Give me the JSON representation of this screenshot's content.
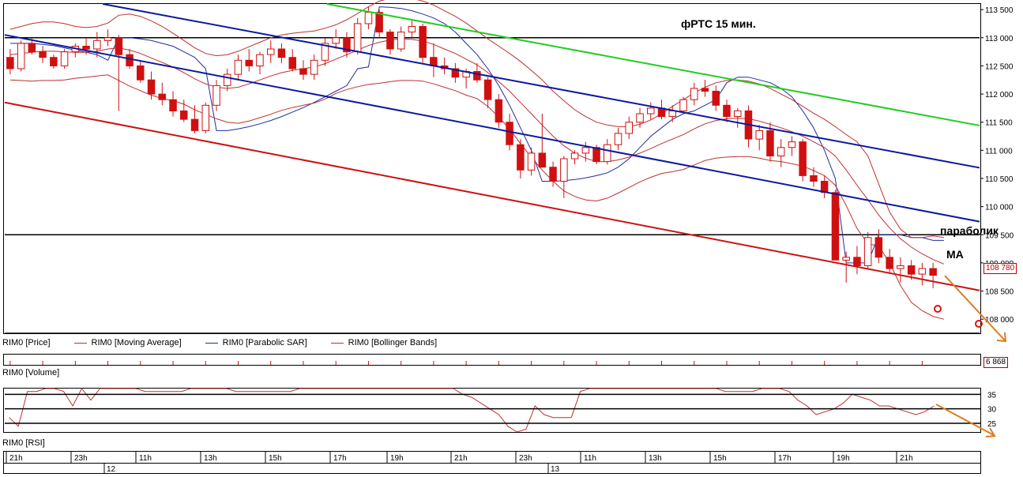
{
  "chart_data": {
    "type": "candlestick",
    "instrument": "RIM0",
    "title": "фРТС   15 мин.",
    "price_axis": {
      "min": 107750,
      "max": 113600,
      "ticks": [
        "113 500",
        "113 000",
        "112 500",
        "112 000",
        "111 500",
        "111 000",
        "110 500",
        "110 000",
        "109 500",
        "109 000",
        "108 500",
        "108 000"
      ],
      "tick_values": [
        113500,
        113000,
        112500,
        112000,
        111500,
        111000,
        110500,
        110000,
        109500,
        109000,
        108500,
        108000
      ]
    },
    "last_price_label": "108 780",
    "last_price": 108780,
    "volume_label": "6 868",
    "rsi_axis": {
      "ticks": [
        "35",
        "30",
        "25"
      ],
      "tick_values": [
        35,
        30,
        25
      ],
      "min": 22,
      "max": 37
    },
    "time_axis": {
      "hour_labels": [
        "21h",
        "23h",
        "11h",
        "13h",
        "15h",
        "17h",
        "19h",
        "21h",
        "23h",
        "11h",
        "13h",
        "15h",
        "17h",
        "19h",
        "21h"
      ],
      "day_labels": [
        "12",
        "13"
      ]
    },
    "legend": [
      {
        "label": "RIM0 [Price]",
        "color": "#000000"
      },
      {
        "label": "RIM0 [Moving Average]",
        "color": "#c03030"
      },
      {
        "label": "RIM0 [Parabolic SAR]",
        "color": "#1c2ea0"
      },
      {
        "label": "RIM0 [Bollinger Bands]",
        "color": "#c03030"
      }
    ],
    "pane_labels": {
      "volume": "RIM0 [Volume]",
      "rsi": "RIM0 [RSI]"
    },
    "annotations": {
      "parabolic": "параболик",
      "ma": "МА"
    },
    "horizontal_levels": [
      113000,
      109500,
      107750
    ],
    "trendlines": [
      {
        "name": "green",
        "color": "#22cc22",
        "p1": [
          0.345,
          113600
        ],
        "p2": [
          0.96,
          111700
        ]
      },
      {
        "name": "blue-upper",
        "color": "#0a1a9c",
        "p1": [
          0.105,
          113600
        ],
        "p2": [
          0.96,
          110950
        ]
      },
      {
        "name": "blue-lower",
        "color": "#0a1a9c",
        "p1": [
          0.0,
          113050
        ],
        "p2": [
          0.96,
          110000
        ]
      },
      {
        "name": "red",
        "color": "#cc1111",
        "p1": [
          0.0,
          111850
        ],
        "p2": [
          0.96,
          108780
        ]
      }
    ],
    "candles": [
      [
        112650,
        112800,
        112350,
        112450
      ],
      [
        112450,
        112950,
        112400,
        112900
      ],
      [
        112900,
        113000,
        112700,
        112750
      ],
      [
        112750,
        112850,
        112550,
        112650
      ],
      [
        112650,
        112700,
        112450,
        112500
      ],
      [
        112500,
        112800,
        112450,
        112750
      ],
      [
        112750,
        112900,
        112650,
        112850
      ],
      [
        112850,
        113000,
        112700,
        112800
      ],
      [
        112800,
        113100,
        112650,
        112950
      ],
      [
        112950,
        113150,
        112850,
        113000
      ],
      [
        113000,
        113050,
        111700,
        112700
      ],
      [
        112700,
        112800,
        112450,
        112500
      ],
      [
        112500,
        112600,
        112200,
        112250
      ],
      [
        112250,
        112400,
        111900,
        112000
      ],
      [
        112000,
        112200,
        111800,
        111900
      ],
      [
        111900,
        112050,
        111600,
        111700
      ],
      [
        111700,
        111900,
        111500,
        111550
      ],
      [
        111550,
        111800,
        111300,
        111350
      ],
      [
        111350,
        111850,
        111300,
        111800
      ],
      [
        111800,
        112250,
        111700,
        112150
      ],
      [
        112150,
        112450,
        112050,
        112350
      ],
      [
        112350,
        112700,
        112250,
        112600
      ],
      [
        112600,
        112800,
        112400,
        112500
      ],
      [
        112500,
        112750,
        112350,
        112700
      ],
      [
        112700,
        112950,
        112550,
        112800
      ],
      [
        112800,
        112900,
        112550,
        112650
      ],
      [
        112650,
        112800,
        112400,
        112450
      ],
      [
        112450,
        112600,
        112250,
        112350
      ],
      [
        112350,
        112700,
        112250,
        112600
      ],
      [
        112600,
        113000,
        112500,
        112900
      ],
      [
        112900,
        113150,
        112800,
        113000
      ],
      [
        113000,
        113100,
        112650,
        112750
      ],
      [
        112750,
        113350,
        112700,
        113250
      ],
      [
        113250,
        113550,
        113150,
        113450
      ],
      [
        113450,
        113500,
        113000,
        113100
      ],
      [
        113100,
        113150,
        112700,
        112800
      ],
      [
        112800,
        113200,
        112750,
        113100
      ],
      [
        113100,
        113300,
        113000,
        113200
      ],
      [
        113200,
        113250,
        112550,
        112650
      ],
      [
        112650,
        112900,
        112300,
        112500
      ],
      [
        112500,
        112650,
        112350,
        112450
      ],
      [
        112450,
        112550,
        112200,
        112300
      ],
      [
        112300,
        112450,
        112100,
        112400
      ],
      [
        112400,
        112550,
        112200,
        112250
      ],
      [
        112250,
        112300,
        111750,
        111900
      ],
      [
        111900,
        112000,
        111400,
        111500
      ],
      [
        111500,
        111650,
        111000,
        111100
      ],
      [
        111100,
        111200,
        110500,
        110650
      ],
      [
        110650,
        111050,
        110550,
        110950
      ],
      [
        110950,
        111650,
        110750,
        110700
      ],
      [
        110700,
        110800,
        110350,
        110450
      ],
      [
        110450,
        110900,
        110150,
        110850
      ],
      [
        110850,
        111000,
        110750,
        110950
      ],
      [
        110950,
        111150,
        110800,
        111050
      ],
      [
        111050,
        111100,
        110750,
        110800
      ],
      [
        110800,
        111200,
        110750,
        111100
      ],
      [
        111100,
        111400,
        111000,
        111300
      ],
      [
        111300,
        111600,
        111200,
        111500
      ],
      [
        111500,
        111750,
        111400,
        111650
      ],
      [
        111650,
        111850,
        111550,
        111750
      ],
      [
        111750,
        111900,
        111550,
        111600
      ],
      [
        111600,
        111800,
        111500,
        111700
      ],
      [
        111700,
        111950,
        111650,
        111900
      ],
      [
        111900,
        112200,
        111800,
        112100
      ],
      [
        112100,
        112250,
        111950,
        112050
      ],
      [
        112050,
        112150,
        111700,
        111800
      ],
      [
        111800,
        111900,
        111500,
        111600
      ],
      [
        111600,
        111750,
        111400,
        111700
      ],
      [
        111700,
        111800,
        111050,
        111200
      ],
      [
        111200,
        111450,
        111000,
        111350
      ],
      [
        111350,
        111500,
        110800,
        110900
      ],
      [
        110900,
        111200,
        110700,
        111050
      ],
      [
        111050,
        111250,
        110900,
        111150
      ],
      [
        111150,
        111200,
        110450,
        110550
      ],
      [
        110550,
        110700,
        110350,
        110450
      ],
      [
        110450,
        110550,
        110150,
        110250
      ],
      [
        110250,
        110300,
        109100,
        109050
      ],
      [
        109050,
        109200,
        108650,
        109100
      ],
      [
        109100,
        109300,
        108800,
        108950
      ],
      [
        108950,
        109550,
        108900,
        109450
      ],
      [
        109450,
        109600,
        109000,
        109100
      ],
      [
        109100,
        109250,
        108800,
        108900
      ],
      [
        108900,
        109100,
        108650,
        108950
      ],
      [
        108950,
        109050,
        108700,
        108800
      ],
      [
        108800,
        109000,
        108600,
        108900
      ],
      [
        108900,
        109000,
        108550,
        108780
      ]
    ],
    "series": [
      {
        "name": "RIM0 [Parabolic SAR]",
        "values": [
          112900,
          112900,
          112900,
          112880,
          112860,
          112820,
          112780,
          112740,
          112700,
          112600,
          113000,
          113000,
          112980,
          112950,
          112900,
          112850,
          112750,
          112650,
          112450,
          111350,
          111350,
          111380,
          111420,
          111470,
          111530,
          111600,
          111680,
          111760,
          111850,
          111950,
          112050,
          112150,
          112450,
          112480,
          113550,
          113540,
          113520,
          113480,
          113420,
          113350,
          113250,
          113100,
          112900,
          112700,
          112450,
          112150,
          111800,
          111400,
          111000,
          110450,
          110450,
          110460,
          110480,
          110510,
          110550,
          110600,
          110700,
          110850,
          111050,
          111250,
          111400,
          111550,
          111650,
          111700,
          111800,
          111900,
          112200,
          112300,
          112300,
          112250,
          112200,
          112100,
          111950,
          111700,
          111400,
          111000,
          110500,
          109000,
          109000,
          109000,
          109500,
          109500,
          109500,
          109450,
          109450,
          109400,
          109400
        ]
      },
      {
        "name": "RIM0 [Moving Average]",
        "values": [
          112700,
          112720,
          112740,
          112760,
          112760,
          112750,
          112740,
          112740,
          112760,
          112800,
          112820,
          112780,
          112720,
          112640,
          112560,
          112480,
          112380,
          112270,
          112180,
          112120,
          112100,
          112120,
          112180,
          112250,
          112320,
          112380,
          112420,
          112450,
          112480,
          112540,
          112620,
          112700,
          112780,
          112860,
          112920,
          112960,
          112980,
          112970,
          112940,
          112880,
          112800,
          112720,
          112620,
          112520,
          112380,
          112220,
          112050,
          111850,
          111650,
          111450,
          111250,
          111080,
          110950,
          110860,
          110800,
          110800,
          110830,
          110880,
          110950,
          111030,
          111120,
          111200,
          111280,
          111380,
          111470,
          111530,
          111560,
          111570,
          111560,
          111520,
          111460,
          111400,
          111330,
          111250,
          111150,
          111050,
          110900,
          110650,
          110380,
          110120,
          109850,
          109620,
          109430,
          109280,
          109160,
          109060,
          108980
        ]
      },
      {
        "name": "RIM0 [Bollinger Bands] upper",
        "values": [
          113150,
          113200,
          113250,
          113280,
          113280,
          113250,
          113200,
          113180,
          113200,
          113260,
          113400,
          113420,
          113380,
          113300,
          113200,
          113080,
          112950,
          112820,
          112720,
          112680,
          112700,
          112760,
          112840,
          112920,
          113000,
          113050,
          113080,
          113100,
          113120,
          113170,
          113230,
          113320,
          113430,
          113550,
          113650,
          113700,
          113720,
          113700,
          113650,
          113580,
          113480,
          113380,
          113260,
          113120,
          112980,
          112850,
          112720,
          112580,
          112420,
          112250,
          112050,
          111880,
          111720,
          111600,
          111500,
          111450,
          111420,
          111420,
          111460,
          111540,
          111650,
          111780,
          111900,
          112020,
          112120,
          112200,
          112240,
          112250,
          112230,
          112180,
          112100,
          112000,
          111900,
          111780,
          111660,
          111550,
          111420,
          111280,
          111150,
          110900,
          110400,
          109900,
          109600,
          109450,
          109450,
          109480,
          109450
        ]
      },
      {
        "name": "RIM0 [Bollinger Bands] lower",
        "values": [
          112250,
          112240,
          112230,
          112240,
          112240,
          112250,
          112280,
          112300,
          112320,
          112340,
          112240,
          112140,
          112060,
          111980,
          111920,
          111880,
          111820,
          111720,
          111640,
          111560,
          111500,
          111480,
          111520,
          111580,
          111640,
          111710,
          111760,
          111800,
          111840,
          111910,
          112010,
          112080,
          112130,
          112170,
          112190,
          112220,
          112240,
          112240,
          112230,
          112180,
          112120,
          112060,
          111980,
          111920,
          111780,
          111590,
          111380,
          111120,
          110880,
          110650,
          110450,
          110280,
          110180,
          110120,
          110100,
          110150,
          110240,
          110340,
          110440,
          110520,
          110590,
          110620,
          110660,
          110740,
          110820,
          110860,
          110880,
          110890,
          110890,
          110860,
          110820,
          110800,
          110760,
          110720,
          110640,
          110550,
          110380,
          110020,
          109610,
          109340,
          109300,
          109000,
          108600,
          108300,
          108150,
          108050,
          108000
        ]
      },
      {
        "name": "RSI",
        "values": [
          27,
          24,
          36,
          36,
          37,
          37,
          36,
          31,
          37,
          33,
          38,
          38,
          38,
          37,
          37,
          36,
          36,
          36,
          36,
          36,
          37,
          37,
          37,
          37,
          37,
          36,
          36,
          36,
          36,
          36,
          36,
          36,
          37,
          37,
          37,
          37,
          37,
          37,
          37,
          37,
          37,
          37,
          37,
          37,
          37,
          37,
          37,
          37,
          37,
          37,
          35,
          34,
          32,
          30,
          28,
          24,
          22,
          23,
          31,
          28,
          27,
          27,
          27,
          36,
          38,
          38,
          38,
          38,
          38,
          37,
          37,
          37,
          37,
          37,
          37,
          37,
          37,
          37,
          37,
          36,
          36,
          36,
          36,
          37,
          37,
          37,
          36,
          33,
          31,
          28,
          29,
          30,
          32,
          35,
          34,
          33,
          31,
          31,
          30,
          29,
          28,
          29,
          31
        ]
      }
    ]
  }
}
